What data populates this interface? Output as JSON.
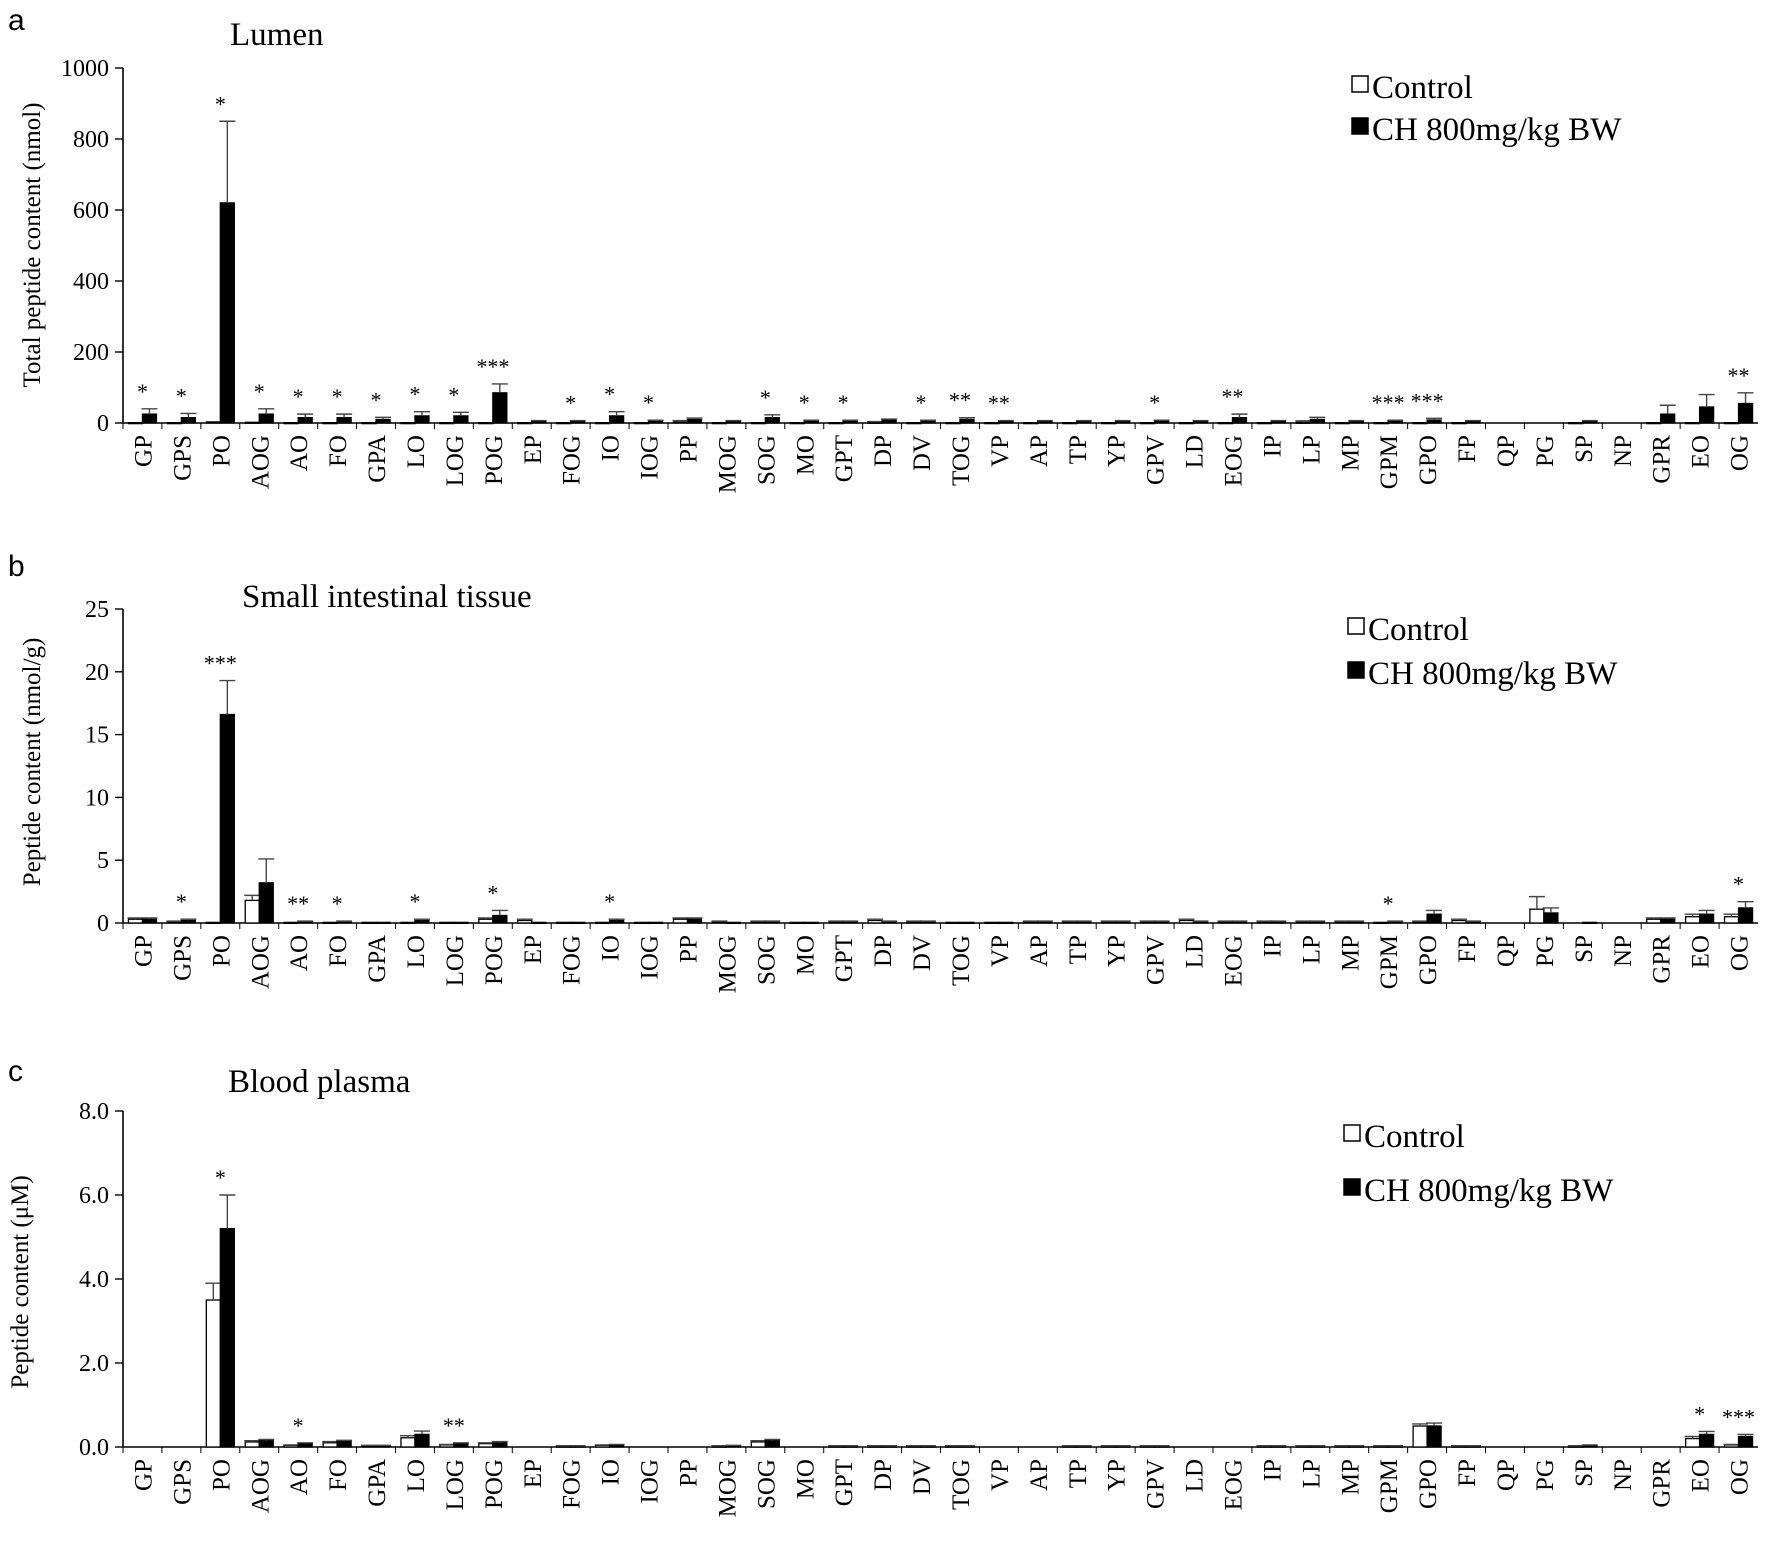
{
  "chart_data": [
    {
      "type": "bar",
      "panel_letter": "a",
      "title": "Lumen",
      "ylabel": "Total peptide content (nmol)",
      "ylim": [
        0,
        1000
      ],
      "yticks": [
        0,
        200,
        400,
        600,
        800,
        1000
      ],
      "ytick_labels": [
        "0",
        "200",
        "400",
        "600",
        "800",
        "1000"
      ],
      "legend": {
        "position": "top-right"
      },
      "categories": [
        "GP",
        "GPS",
        "PO",
        "AOG",
        "AO",
        "FO",
        "GPA",
        "LO",
        "LOG",
        "POG",
        "EP",
        "FOG",
        "IO",
        "IOG",
        "PP",
        "MOG",
        "SOG",
        "MO",
        "GPT",
        "DP",
        "DV",
        "TOG",
        "VP",
        "AP",
        "TP",
        "YP",
        "GPV",
        "LD",
        "EOG",
        "IP",
        "LP",
        "MP",
        "GPM",
        "GPO",
        "FP",
        "QP",
        "PG",
        "SP",
        "NP",
        "GPR",
        "EO",
        "OG"
      ],
      "series": [
        {
          "name": "Control",
          "color": "#ffffff",
          "values": [
            1,
            1,
            3,
            2,
            1,
            1,
            1,
            1,
            1,
            1,
            1,
            1,
            1,
            1,
            3,
            1,
            1,
            1,
            1,
            2,
            1,
            1,
            1,
            1,
            1,
            1,
            1,
            1,
            1,
            1,
            2,
            1,
            1,
            1,
            1,
            0,
            0,
            1,
            0,
            1,
            1,
            1
          ],
          "errors": [
            0,
            0,
            0,
            0,
            0,
            0,
            0,
            0,
            0,
            0,
            0,
            0,
            0,
            0,
            4,
            0,
            0,
            0,
            0,
            2,
            0,
            0,
            0,
            0,
            0,
            0,
            0,
            0,
            0,
            0,
            4,
            0,
            0,
            0,
            0,
            0,
            0,
            0,
            0,
            0,
            0,
            0
          ]
        },
        {
          "name": "CH 800mg/kg BW",
          "color": "#000000",
          "values": [
            25,
            15,
            620,
            25,
            15,
            15,
            10,
            20,
            20,
            85,
            5,
            5,
            20,
            5,
            10,
            5,
            15,
            5,
            5,
            8,
            5,
            10,
            5,
            5,
            5,
            5,
            5,
            5,
            15,
            5,
            10,
            5,
            5,
            8,
            5,
            0,
            0,
            5,
            0,
            25,
            45,
            55
          ],
          "errors": [
            15,
            12,
            230,
            15,
            10,
            10,
            6,
            12,
            10,
            25,
            2,
            2,
            12,
            3,
            4,
            2,
            8,
            3,
            3,
            3,
            3,
            5,
            2,
            2,
            2,
            2,
            3,
            2,
            10,
            2,
            6,
            2,
            3,
            5,
            2,
            0,
            0,
            2,
            0,
            25,
            35,
            30
          ]
        }
      ],
      "annotations": [
        "*",
        "*",
        "*",
        "*",
        "*",
        "*",
        "*",
        "*",
        "*",
        "***",
        "",
        "*",
        "*",
        "*",
        "",
        "",
        "*",
        "*",
        "*",
        "",
        "*",
        "**",
        "**",
        "",
        "",
        "",
        "*",
        "",
        "**",
        "",
        "",
        "",
        "***",
        "***",
        "",
        "",
        "",
        "",
        "",
        "",
        "",
        "**"
      ]
    },
    {
      "type": "bar",
      "panel_letter": "b",
      "title": "Small intestinal tissue",
      "ylabel": "Peptide content (nmol/g)",
      "ylim": [
        0,
        25
      ],
      "yticks": [
        0,
        5,
        10,
        15,
        20,
        25
      ],
      "ytick_labels": [
        "0",
        "5",
        "10",
        "15",
        "20",
        "25"
      ],
      "legend": {
        "position": "top-right"
      },
      "categories": [
        "GP",
        "GPS",
        "PO",
        "AOG",
        "AO",
        "FO",
        "GPA",
        "LO",
        "LOG",
        "POG",
        "EP",
        "FOG",
        "IO",
        "IOG",
        "PP",
        "MOG",
        "SOG",
        "MO",
        "GPT",
        "DP",
        "DV",
        "TOG",
        "VP",
        "AP",
        "TP",
        "YP",
        "GPV",
        "LD",
        "EOG",
        "IP",
        "LP",
        "MP",
        "GPM",
        "GPO",
        "FP",
        "QP",
        "PG",
        "SP",
        "NP",
        "GPR",
        "EO",
        "OG"
      ],
      "series": [
        {
          "name": "Control",
          "color": "#ffffff",
          "values": [
            0.3,
            0.1,
            0.05,
            1.8,
            0.05,
            0.05,
            0.05,
            0.05,
            0.05,
            0.3,
            0.2,
            0.05,
            0.05,
            0.05,
            0.3,
            0.1,
            0.1,
            0.05,
            0.1,
            0.2,
            0.1,
            0.05,
            0.05,
            0.1,
            0.1,
            0.1,
            0.1,
            0.2,
            0.1,
            0.1,
            0.1,
            0.1,
            0.05,
            0.1,
            0.2,
            0,
            1.1,
            0,
            0,
            0.3,
            0.5,
            0.5
          ],
          "errors": [
            0.1,
            0.05,
            0,
            0.4,
            0,
            0,
            0,
            0,
            0,
            0.1,
            0.1,
            0,
            0,
            0,
            0.1,
            0.05,
            0.05,
            0,
            0.05,
            0.1,
            0.05,
            0,
            0,
            0.05,
            0.05,
            0.05,
            0.05,
            0.1,
            0.05,
            0.05,
            0.05,
            0.05,
            0,
            0.05,
            0.1,
            0,
            1.0,
            0,
            0,
            0.1,
            0.2,
            0.2
          ]
        },
        {
          "name": "CH 800mg/kg BW",
          "color": "#000000",
          "values": [
            0.3,
            0.2,
            16.6,
            3.2,
            0.1,
            0.1,
            0.05,
            0.2,
            0.05,
            0.6,
            0.05,
            0.05,
            0.2,
            0.05,
            0.3,
            0.05,
            0.1,
            0.05,
            0.1,
            0.1,
            0.1,
            0.05,
            0.05,
            0.1,
            0.1,
            0.1,
            0.1,
            0.1,
            0.1,
            0.1,
            0.1,
            0.1,
            0.1,
            0.7,
            0.1,
            0,
            0.8,
            0.05,
            0,
            0.3,
            0.7,
            1.2
          ],
          "errors": [
            0.1,
            0.1,
            2.7,
            1.9,
            0.05,
            0.05,
            0,
            0.1,
            0,
            0.4,
            0,
            0,
            0.1,
            0,
            0.1,
            0,
            0.05,
            0,
            0.05,
            0.05,
            0.05,
            0,
            0,
            0.05,
            0.05,
            0.05,
            0.05,
            0.05,
            0.05,
            0.05,
            0.05,
            0.05,
            0.05,
            0.3,
            0.05,
            0,
            0.4,
            0,
            0,
            0.1,
            0.3,
            0.5
          ]
        }
      ],
      "annotations": [
        "",
        "*",
        "***",
        "",
        "**",
        "*",
        "",
        "*",
        "",
        "*",
        "",
        "",
        "*",
        "",
        "",
        "",
        "",
        "",
        "",
        "",
        "",
        "",
        "",
        "",
        "",
        "",
        "",
        "",
        "",
        "",
        "",
        "",
        "*",
        "",
        "",
        "",
        "",
        "",
        "",
        "",
        "",
        "*"
      ]
    },
    {
      "type": "bar",
      "panel_letter": "c",
      "title": "Blood plasma",
      "ylabel": "Peptide content (μM)",
      "ylim": [
        0,
        8
      ],
      "yticks": [
        0,
        2,
        4,
        6,
        8
      ],
      "ytick_labels": [
        "0.0",
        "2.0",
        "4.0",
        "6.0",
        "8.0"
      ],
      "legend": {
        "position": "top-right"
      },
      "categories": [
        "GP",
        "GPS",
        "PO",
        "AOG",
        "AO",
        "FO",
        "GPA",
        "LO",
        "LOG",
        "POG",
        "EP",
        "FOG",
        "IO",
        "IOG",
        "PP",
        "MOG",
        "SOG",
        "MO",
        "GPT",
        "DP",
        "DV",
        "TOG",
        "VP",
        "AP",
        "TP",
        "YP",
        "GPV",
        "LD",
        "EOG",
        "IP",
        "LP",
        "MP",
        "GPM",
        "GPO",
        "FP",
        "QP",
        "PG",
        "SP",
        "NP",
        "GPR",
        "EO",
        "OG"
      ],
      "series": [
        {
          "name": "Control",
          "color": "#ffffff",
          "values": [
            0,
            0,
            3.5,
            0.12,
            0.04,
            0.1,
            0.03,
            0.22,
            0.05,
            0.08,
            0,
            0.02,
            0.04,
            0,
            0,
            0.02,
            0.12,
            0,
            0.02,
            0.02,
            0.02,
            0.02,
            0,
            0,
            0.02,
            0.02,
            0.02,
            0,
            0,
            0.02,
            0.02,
            0.02,
            0.02,
            0.5,
            0.02,
            0,
            0,
            0.02,
            0,
            0,
            0.2,
            0.05
          ],
          "errors": [
            0,
            0,
            0.4,
            0.03,
            0.01,
            0.03,
            0.01,
            0.05,
            0.01,
            0.02,
            0,
            0.01,
            0.01,
            0,
            0,
            0.01,
            0.03,
            0,
            0.01,
            0.01,
            0.01,
            0.01,
            0,
            0,
            0.01,
            0.01,
            0.01,
            0,
            0,
            0.01,
            0.01,
            0.01,
            0.01,
            0.05,
            0.01,
            0,
            0,
            0.01,
            0,
            0,
            0.05,
            0.01
          ]
        },
        {
          "name": "CH 800mg/kg BW",
          "color": "#000000",
          "values": [
            0,
            0,
            5.2,
            0.15,
            0.08,
            0.13,
            0.03,
            0.3,
            0.08,
            0.1,
            0,
            0.02,
            0.05,
            0,
            0,
            0.03,
            0.15,
            0,
            0.02,
            0.02,
            0.02,
            0.02,
            0,
            0,
            0.02,
            0.02,
            0.02,
            0,
            0,
            0.02,
            0.02,
            0.02,
            0.02,
            0.5,
            0.02,
            0,
            0,
            0.04,
            0,
            0,
            0.3,
            0.25
          ],
          "errors": [
            0,
            0,
            0.8,
            0.03,
            0.02,
            0.03,
            0.01,
            0.08,
            0.02,
            0.03,
            0,
            0.01,
            0.01,
            0,
            0,
            0.01,
            0.03,
            0,
            0.01,
            0.01,
            0.01,
            0.01,
            0,
            0,
            0.01,
            0.01,
            0.01,
            0,
            0,
            0.01,
            0.01,
            0.01,
            0.01,
            0.07,
            0.01,
            0,
            0,
            0.01,
            0,
            0,
            0.07,
            0.05
          ]
        }
      ],
      "annotations": [
        "",
        "",
        "*",
        "",
        "*",
        "",
        "",
        "",
        "**",
        "",
        "",
        "",
        "",
        "",
        "",
        "",
        "",
        "",
        "",
        "",
        "",
        "",
        "",
        "",
        "",
        "",
        "",
        "",
        "",
        "",
        "",
        "",
        "",
        "",
        "",
        "",
        "",
        "",
        "",
        "",
        "*",
        "***"
      ]
    }
  ]
}
